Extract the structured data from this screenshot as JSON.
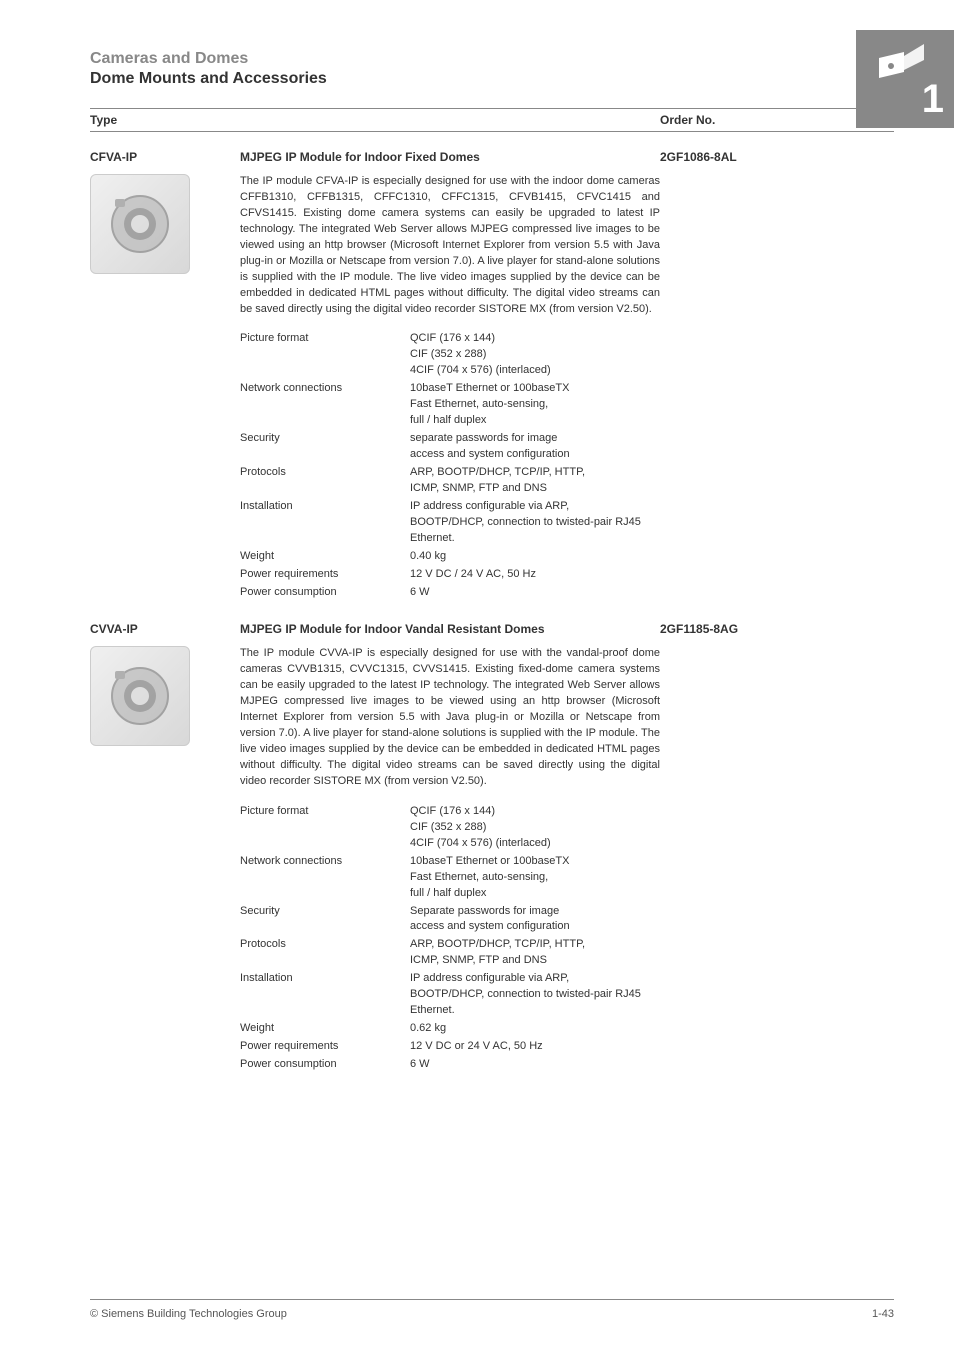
{
  "header": {
    "category": "Cameras and Domes",
    "subcategory": "Dome Mounts and Accessories",
    "chapter_number": "1"
  },
  "colors": {
    "muted_text": "#888888",
    "text": "#333333",
    "corner_bg": "#888888",
    "corner_fg": "#ffffff",
    "rule": "#888888",
    "page_bg": "#ffffff"
  },
  "columns": {
    "type": "Type",
    "order": "Order No."
  },
  "products": [
    {
      "code": "CFVA-IP",
      "title": "MJPEG IP Module for Indoor Fixed Domes",
      "order_no": "2GF1086-8AL",
      "description": "The IP module CFVA-IP is especially designed for use with the indoor dome cameras CFFB1310, CFFB1315, CFFC1310, CFFC1315, CFVB1415, CFVC1415 and CFVS1415. Existing dome camera systems can easily be upgraded to latest IP technology. The integrated Web Server allows MJPEG compressed live images to be viewed using an http browser (Microsoft Internet Explorer from version 5.5 with Java plug-in or Mozilla or Netscape from version 7.0). A live player for stand-alone solutions is supplied with the IP module. The live video images supplied by the device can be embedded in dedicated HTML pages without difficulty. The digital video streams can be saved directly using the digital video recorder SISTORE MX (from version V2.50).",
      "specs": [
        {
          "label": "Picture format",
          "value": "QCIF (176 x 144)\nCIF (352 x 288)\n4CIF (704 x 576) (interlaced)"
        },
        {
          "label": "Network connections",
          "value": "10baseT Ethernet or 100baseTX\nFast Ethernet, auto-sensing,\nfull / half duplex"
        },
        {
          "label": "Security",
          "value": "separate passwords for image\naccess and system configuration"
        },
        {
          "label": "Protocols",
          "value": "ARP, BOOTP/DHCP, TCP/IP, HTTP,\nICMP, SNMP, FTP and DNS"
        },
        {
          "label": "Installation",
          "value": "IP address configurable via ARP,\nBOOTP/DHCP, connection to twisted-pair RJ45 Ethernet."
        },
        {
          "label": "Weight",
          "value": "0.40 kg"
        },
        {
          "label": "Power requirements",
          "value": "12 V DC / 24 V AC, 50 Hz"
        },
        {
          "label": "Power consumption",
          "value": "6 W"
        }
      ]
    },
    {
      "code": "CVVA-IP",
      "title": "MJPEG IP Module for Indoor Vandal Resistant Domes",
      "order_no": "2GF1185-8AG",
      "description": "The IP module CVVA-IP is especially designed for use with the vandal-proof dome cameras CVVB1315, CVVC1315, CVVS1415. Existing fixed-dome camera systems can be easily upgraded to the latest IP technology. The integrated Web Server allows MJPEG compressed live images to be viewed using an http browser (Microsoft Internet Explorer from version 5.5 with Java plug-in or Mozilla or Netscape from version 7.0). A live player for stand-alone solutions is supplied with the IP module. The live video images supplied by the device can be embedded in dedicated HTML pages without difficulty. The digital video streams can be saved directly using the digital video recorder SISTORE MX (from version V2.50).",
      "specs": [
        {
          "label": "Picture format",
          "value": "QCIF (176 x 144)\nCIF (352 x 288)\n4CIF (704 x 576) (interlaced)"
        },
        {
          "label": "Network connections",
          "value": "10baseT Ethernet or 100baseTX\nFast Ethernet, auto-sensing,\nfull / half duplex"
        },
        {
          "label": "Security",
          "value": "Separate passwords for image\naccess and system configuration"
        },
        {
          "label": "Protocols",
          "value": "ARP, BOOTP/DHCP, TCP/IP, HTTP,\nICMP, SNMP, FTP and DNS"
        },
        {
          "label": "Installation",
          "value": "IP address configurable via ARP,\nBOOTP/DHCP, connection to twisted-pair RJ45 Ethernet."
        },
        {
          "label": "Weight",
          "value": "0.62 kg"
        },
        {
          "label": "Power requirements",
          "value": "12 V DC or 24 V AC, 50 Hz"
        },
        {
          "label": "Power consumption",
          "value": "6 W"
        }
      ]
    }
  ],
  "footer": {
    "copyright": "© Siemens Building Technologies Group",
    "page_no": "1-43"
  }
}
